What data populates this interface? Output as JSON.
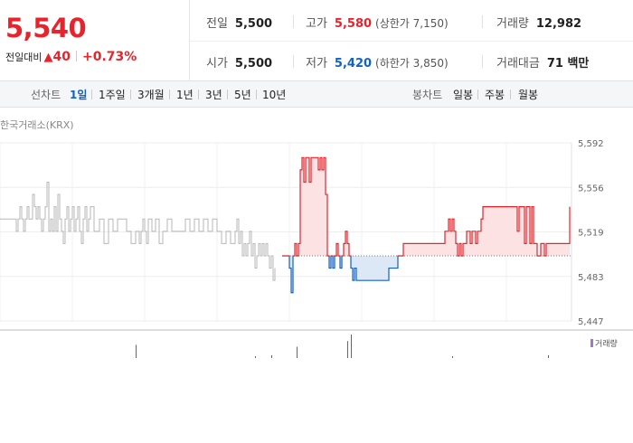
{
  "quote": {
    "price": "5,540",
    "change_label": "전일대비",
    "change_arrow": "▲",
    "change_value": "40",
    "change_rate": "+0.73%",
    "prev_label": "전일",
    "prev_value": "5,500",
    "high_label": "고가",
    "high_value": "5,580",
    "upper_limit": "(상한가 7,150)",
    "volume_label": "거래량",
    "volume_value": "12,982",
    "open_label": "시가",
    "open_value": "5,500",
    "low_label": "저가",
    "low_value": "5,420",
    "lower_limit": "(하한가 3,850)",
    "amount_label": "거래대금",
    "amount_value": "71 백만"
  },
  "periods": {
    "label": "선차트",
    "items": [
      "1일",
      "1주일",
      "3개월",
      "1년",
      "3년",
      "5년",
      "10년"
    ],
    "active_index": 0
  },
  "candles": {
    "label": "봉차트",
    "items": [
      "일봉",
      "주봉",
      "월봉"
    ]
  },
  "chart_data": {
    "type": "line",
    "source": "한국거래소(KRX)",
    "y_ticks": [
      "5,592",
      "5,556",
      "5,519",
      "5,483",
      "5,447"
    ],
    "ylim": [
      5447,
      5592
    ],
    "baseline": 5500,
    "series": [
      {
        "x": [
          0,
          16,
          18,
          20,
          22,
          24,
          26,
          28,
          30,
          32,
          34,
          36,
          38,
          40,
          42,
          44,
          46,
          48,
          50,
          52,
          54,
          56,
          58,
          60,
          62,
          64,
          66,
          68,
          70,
          72,
          74,
          76,
          78,
          80,
          82,
          84,
          86,
          88,
          90,
          92,
          94,
          96,
          98,
          100,
          104,
          110,
          115,
          120,
          125,
          130,
          135,
          140,
          145,
          150,
          154,
          156,
          158,
          160,
          162,
          164,
          168,
          172,
          176,
          180,
          185,
          190,
          195,
          200,
          205,
          210,
          215,
          220,
          225,
          230,
          235,
          240,
          245,
          250,
          255,
          260,
          262,
          264,
          266,
          268,
          270,
          272,
          274,
          276,
          278,
          280,
          282,
          284,
          286,
          288,
          290,
          292,
          294,
          296,
          298,
          300,
          302,
          304
        ],
        "values": [
          5530,
          5530,
          5520,
          5530,
          5540,
          5530,
          5520,
          5530,
          5540,
          5530,
          5530,
          5550,
          5540,
          5530,
          5540,
          5530,
          5520,
          5530,
          5540,
          5560,
          5520,
          5530,
          5520,
          5540,
          5520,
          5550,
          5530,
          5520,
          5510,
          5530,
          5540,
          5520,
          5530,
          5540,
          5520,
          5530,
          5540,
          5520,
          5510,
          5530,
          5540,
          5520,
          5530,
          5540,
          5520,
          5530,
          5510,
          5530,
          5520,
          5530,
          5530,
          5520,
          5510,
          5520,
          5510,
          5520,
          5530,
          5520,
          5510,
          5530,
          5520,
          5530,
          5510,
          5520,
          5530,
          5520,
          5520,
          5520,
          5530,
          5520,
          5530,
          5520,
          5530,
          5520,
          5530,
          5520,
          5510,
          5520,
          5510,
          5520,
          5530,
          5510,
          5520,
          5500,
          5510,
          5500,
          5510,
          5520,
          5500,
          5510,
          5490,
          5500,
          5510,
          5500,
          5510,
          5500,
          5510,
          5500,
          5490,
          5500,
          5480,
          5490
        ]
      },
      {
        "x": [
          312,
          318,
          320,
          322,
          324,
          326,
          328,
          330,
          332,
          334,
          336,
          338,
          340,
          342,
          344,
          346,
          348,
          350,
          352,
          354,
          356,
          358,
          360,
          362,
          364,
          366,
          368,
          370,
          372,
          374,
          376,
          378,
          380,
          382,
          384,
          386,
          388,
          390,
          392,
          394,
          396,
          398,
          400,
          402,
          406,
          410,
          414,
          418,
          422,
          426,
          430,
          434,
          438,
          440,
          442,
          446,
          450,
          454,
          458,
          462,
          466,
          470,
          474,
          478,
          482,
          486,
          490,
          492,
          494,
          496,
          498,
          500,
          502,
          504,
          506,
          508,
          510,
          512,
          514,
          516,
          518,
          520,
          522,
          524,
          526,
          528,
          530,
          532,
          534,
          536,
          538,
          540,
          544,
          548,
          552,
          556,
          560,
          564,
          568,
          570,
          572,
          574,
          576,
          578,
          580,
          582,
          584,
          586,
          588,
          590,
          592,
          594,
          596,
          598,
          600,
          602,
          604,
          606,
          608,
          610,
          612,
          614,
          616,
          618,
          620,
          622,
          624,
          626,
          628,
          630
        ],
        "values": [
          5500,
          5500,
          5490,
          5470,
          5500,
          5510,
          5500,
          5510,
          5570,
          5580,
          5560,
          5580,
          5580,
          5560,
          5580,
          5580,
          5580,
          5580,
          5570,
          5580,
          5570,
          5580,
          5550,
          5500,
          5490,
          5500,
          5490,
          5500,
          5510,
          5500,
          5490,
          5500,
          5510,
          5520,
          5510,
          5500,
          5490,
          5480,
          5490,
          5480,
          5480,
          5480,
          5480,
          5480,
          5480,
          5480,
          5480,
          5480,
          5480,
          5480,
          5490,
          5490,
          5490,
          5500,
          5500,
          5510,
          5510,
          5510,
          5510,
          5510,
          5510,
          5510,
          5510,
          5510,
          5510,
          5510,
          5510,
          5520,
          5520,
          5530,
          5520,
          5530,
          5520,
          5510,
          5500,
          5510,
          5500,
          5510,
          5510,
          5520,
          5520,
          5510,
          5520,
          5520,
          5510,
          5520,
          5520,
          5530,
          5540,
          5540,
          5540,
          5540,
          5540,
          5540,
          5540,
          5540,
          5540,
          5540,
          5540,
          5540,
          5520,
          5540,
          5540,
          5540,
          5510,
          5540,
          5540,
          5510,
          5540,
          5510,
          5510,
          5500,
          5500,
          5510,
          5510,
          5500,
          5510,
          5510,
          5510,
          5510,
          5510,
          5510,
          5510,
          5510,
          5510,
          5510,
          5510,
          5510,
          5510,
          5540
        ]
      }
    ],
    "volume": {
      "legend": "거래량",
      "x": [
        150,
        282,
        300,
        328,
        384,
        388,
        500,
        606
      ],
      "values": [
        14,
        2,
        3,
        12,
        18,
        25,
        2,
        3
      ]
    }
  },
  "colors": {
    "up": "#e8232b",
    "down": "#1261c4",
    "pre_line": "#b7b7b7",
    "up_fill": "#fde2e3",
    "down_fill": "#dde8f6",
    "volume": "#9b7cc4"
  }
}
